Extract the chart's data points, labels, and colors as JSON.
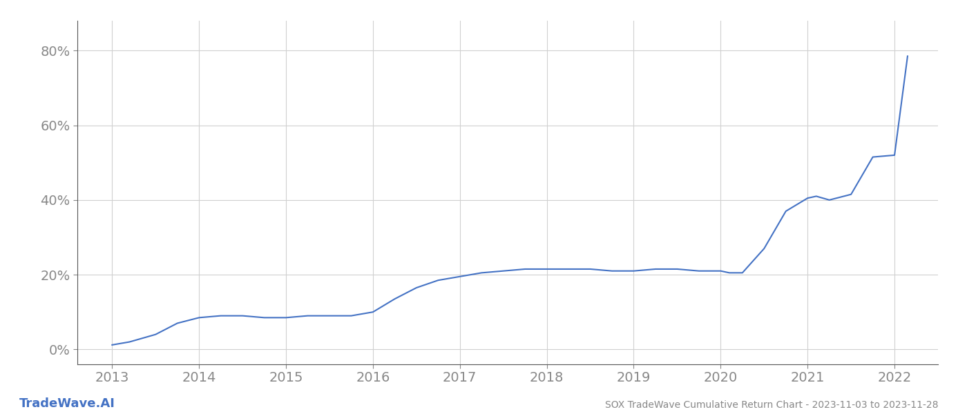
{
  "x_years": [
    2013.0,
    2013.2,
    2013.5,
    2013.75,
    2014.0,
    2014.25,
    2014.5,
    2014.75,
    2015.0,
    2015.25,
    2015.5,
    2015.75,
    2016.0,
    2016.25,
    2016.5,
    2016.75,
    2017.0,
    2017.25,
    2017.5,
    2017.75,
    2018.0,
    2018.25,
    2018.5,
    2018.75,
    2019.0,
    2019.25,
    2019.5,
    2019.75,
    2020.0,
    2020.1,
    2020.25,
    2020.5,
    2020.75,
    2021.0,
    2021.1,
    2021.25,
    2021.5,
    2021.75,
    2022.0,
    2022.15
  ],
  "y_values": [
    0.012,
    0.02,
    0.04,
    0.07,
    0.085,
    0.09,
    0.09,
    0.085,
    0.085,
    0.09,
    0.09,
    0.09,
    0.1,
    0.135,
    0.165,
    0.185,
    0.195,
    0.205,
    0.21,
    0.215,
    0.215,
    0.215,
    0.215,
    0.21,
    0.21,
    0.215,
    0.215,
    0.21,
    0.21,
    0.205,
    0.205,
    0.27,
    0.37,
    0.405,
    0.41,
    0.4,
    0.415,
    0.515,
    0.52,
    0.785
  ],
  "line_color": "#4472c4",
  "line_width": 1.5,
  "background_color": "#ffffff",
  "grid_color": "#d0d0d0",
  "axis_color": "#555555",
  "tick_label_color": "#888888",
  "title_text": "SOX TradeWave Cumulative Return Chart - 2023-11-03 to 2023-11-28",
  "watermark_text": "TradeWave.AI",
  "watermark_color": "#4472c4",
  "ytick_labels": [
    "0%",
    "20%",
    "40%",
    "60%",
    "80%"
  ],
  "ytick_values": [
    0.0,
    0.2,
    0.4,
    0.6,
    0.8
  ],
  "xlim": [
    2012.6,
    2022.5
  ],
  "ylim": [
    -0.04,
    0.88
  ],
  "xtick_values": [
    2013,
    2014,
    2015,
    2016,
    2017,
    2018,
    2019,
    2020,
    2021,
    2022
  ],
  "title_fontsize": 10,
  "tick_fontsize": 14,
  "watermark_fontsize": 13
}
